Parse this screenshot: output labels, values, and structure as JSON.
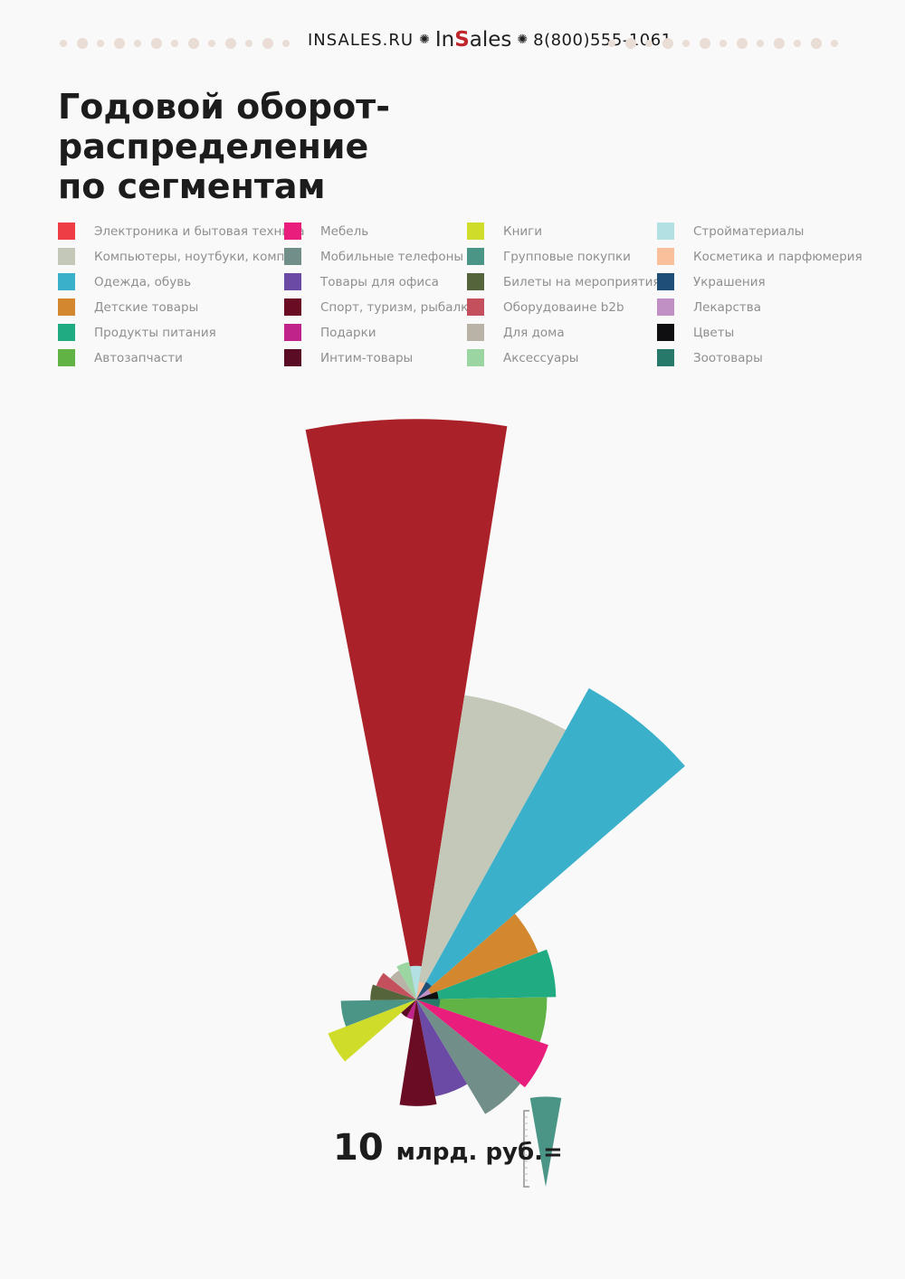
{
  "header": {
    "site": "INSALES.RU",
    "logo_prefix": "In",
    "logo_accent": "S",
    "logo_suffix": "ales",
    "phone": "8(800)555-1061",
    "rosette_icon": "rosette-icon"
  },
  "title_line1": "Годовой оборот- распределение",
  "title_line2": "по сегментам",
  "chart_data": {
    "type": "polar-area",
    "title": "Годовой оборот- распределение по сегментам",
    "scale_note": {
      "value_label": "10",
      "unit_label": "млрд. руб.=",
      "reference_value": 10,
      "reference_color": "#4a9586"
    },
    "segments": [
      {
        "name": "Электроника и бытовая техника",
        "color": "#ee3d45",
        "slice_color": "#ab2129",
        "value": 415
      },
      {
        "name": "Компьютеры, ноутбуки, компл.",
        "color": "#c3c8b8",
        "slice_color": "#c3c8b8",
        "value": 117
      },
      {
        "name": "Одежда, обувь",
        "color": "#3ab0ca",
        "slice_color": "#3ab0ca",
        "value": 156
      },
      {
        "name": "Детские товары",
        "color": "#d3872e",
        "slice_color": "#d3872e",
        "value": 21
      },
      {
        "name": "Продукты питания",
        "color": "#20ab82",
        "slice_color": "#20ab82",
        "value": 24
      },
      {
        "name": "Автозапчасти",
        "color": "#62b346",
        "slice_color": "#62b346",
        "value": 21
      },
      {
        "name": "Мебель",
        "color": "#e91e7c",
        "slice_color": "#e91e7c",
        "value": 24
      },
      {
        "name": "Мобильные телефоны",
        "color": "#718f88",
        "slice_color": "#718f88",
        "value": 22
      },
      {
        "name": "Товары для офиса",
        "color": "#6b4aa6",
        "slice_color": "#6b4aa6",
        "value": 12
      },
      {
        "name": "Спорт, туризм, рыбалка",
        "color": "#6a0c24",
        "slice_color": "#6a0c24",
        "value": 14
      },
      {
        "name": "Подарки",
        "color": "#c0248b",
        "slice_color": "#c0248b",
        "value": 0.5
      },
      {
        "name": "Интим-товары",
        "color": "#5a0c24",
        "slice_color": "#5a0c24",
        "value": 0.5
      },
      {
        "name": "Книги",
        "color": "#cfdc2a",
        "slice_color": "#cfdc2a",
        "value": 11
      },
      {
        "name": "Групповые покупки",
        "color": "#4a9586",
        "slice_color": "#4a9586",
        "value": 7
      },
      {
        "name": "Билеты на мероприятия",
        "color": "#56643c",
        "slice_color": "#56643c",
        "value": 2.6
      },
      {
        "name": "Оборудоваине b2b",
        "color": "#c4505e",
        "slice_color": "#c4505e",
        "value": 2.2
      },
      {
        "name": "Для дома",
        "color": "#b9b3a7",
        "slice_color": "#b9b3a7",
        "value": 1.4
      },
      {
        "name": "Аксессуары",
        "color": "#9bd5a2",
        "slice_color": "#9bd5a2",
        "value": 1.8
      },
      {
        "name": "Стройматериалы",
        "color": "#b3e0e2",
        "slice_color": "#b3e0e2",
        "value": 1.4
      },
      {
        "name": "Косметика и парфюмерия",
        "color": "#fac09c",
        "slice_color": "#fac09c",
        "value": 0.4
      },
      {
        "name": "Украшения",
        "color": "#1f4f79",
        "slice_color": "#1f4f79",
        "value": 0.5
      },
      {
        "name": "Лекарства",
        "color": "#c08fc4",
        "slice_color": "#c08fc4",
        "value": 0.3
      },
      {
        "name": "Цветы",
        "color": "#0f0f12",
        "slice_color": "#0f0f12",
        "value": 0.6
      },
      {
        "name": "Зоотовары",
        "color": "#277a69",
        "slice_color": "#277a69",
        "value": 0.7
      }
    ]
  }
}
